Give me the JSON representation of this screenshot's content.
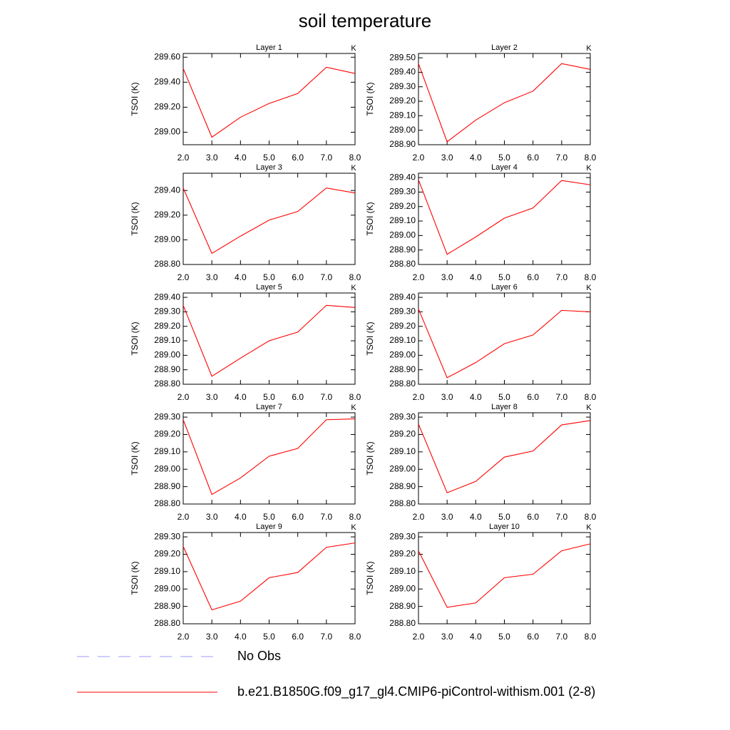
{
  "title": "soil temperature",
  "legend": [
    {
      "name": "No Obs",
      "color": "#9999ff",
      "dashed": true
    },
    {
      "name": "b.e21.B1850G.f09_g17_gl4.CMIP6-piControl-withism.001 (2-8)",
      "color": "#ff0000",
      "dashed": false
    }
  ],
  "chart_data": [
    {
      "type": "line",
      "title": "Layer 1",
      "ylabel": "TSOI  (K)",
      "units": "K",
      "color": "#ff0000",
      "x": [
        2,
        3,
        4,
        5,
        6,
        7,
        8
      ],
      "values": [
        289.51,
        288.96,
        289.12,
        289.23,
        289.31,
        289.52,
        289.47
      ],
      "xlim": [
        2,
        8
      ],
      "xticks": [
        {
          "value": 2,
          "label": "2.0"
        },
        {
          "value": 3,
          "label": "3.0"
        },
        {
          "value": 4,
          "label": "4.0"
        },
        {
          "value": 5,
          "label": "5.0"
        },
        {
          "value": 6,
          "label": "6.0"
        },
        {
          "value": 7,
          "label": "7.0"
        },
        {
          "value": 8,
          "label": "8.0"
        }
      ],
      "ylim": [
        288.9,
        289.63
      ],
      "yticks": [
        {
          "value": 289.0,
          "label": "289.00"
        },
        {
          "value": 289.2,
          "label": "289.20"
        },
        {
          "value": 289.4,
          "label": "289.40"
        },
        {
          "value": 289.6,
          "label": "289.60"
        }
      ]
    },
    {
      "type": "line",
      "title": "Layer 2",
      "ylabel": "TSOI  (K)",
      "units": "K",
      "color": "#ff0000",
      "x": [
        2,
        3,
        4,
        5,
        6,
        7,
        8
      ],
      "values": [
        289.46,
        288.92,
        289.07,
        289.19,
        289.27,
        289.46,
        289.42
      ],
      "xlim": [
        2,
        8
      ],
      "xticks": [
        {
          "value": 2,
          "label": "2.0"
        },
        {
          "value": 3,
          "label": "3.0"
        },
        {
          "value": 4,
          "label": "4.0"
        },
        {
          "value": 5,
          "label": "5.0"
        },
        {
          "value": 6,
          "label": "6.0"
        },
        {
          "value": 7,
          "label": "7.0"
        },
        {
          "value": 8,
          "label": "8.0"
        }
      ],
      "ylim": [
        288.9,
        289.53
      ],
      "yticks": [
        {
          "value": 288.9,
          "label": "288.90"
        },
        {
          "value": 289.0,
          "label": "289.00"
        },
        {
          "value": 289.1,
          "label": "289.10"
        },
        {
          "value": 289.2,
          "label": "289.20"
        },
        {
          "value": 289.3,
          "label": "289.30"
        },
        {
          "value": 289.4,
          "label": "289.40"
        },
        {
          "value": 289.5,
          "label": "289.50"
        }
      ]
    },
    {
      "type": "line",
      "title": "Layer 3",
      "ylabel": "TSOI  (K)",
      "units": "K",
      "color": "#ff0000",
      "x": [
        2,
        3,
        4,
        5,
        6,
        7,
        8
      ],
      "values": [
        289.42,
        288.89,
        289.03,
        289.16,
        289.23,
        289.42,
        289.38
      ],
      "xlim": [
        2,
        8
      ],
      "xticks": [
        {
          "value": 2,
          "label": "2.0"
        },
        {
          "value": 3,
          "label": "3.0"
        },
        {
          "value": 4,
          "label": "4.0"
        },
        {
          "value": 5,
          "label": "5.0"
        },
        {
          "value": 6,
          "label": "6.0"
        },
        {
          "value": 7,
          "label": "7.0"
        },
        {
          "value": 8,
          "label": "8.0"
        }
      ],
      "ylim": [
        288.8,
        289.54
      ],
      "yticks": [
        {
          "value": 288.8,
          "label": "288.80"
        },
        {
          "value": 289.0,
          "label": "289.00"
        },
        {
          "value": 289.2,
          "label": "289.20"
        },
        {
          "value": 289.4,
          "label": "289.40"
        }
      ]
    },
    {
      "type": "line",
      "title": "Layer 4",
      "ylabel": "TSOI  (K)",
      "units": "K",
      "color": "#ff0000",
      "x": [
        2,
        3,
        4,
        5,
        6,
        7,
        8
      ],
      "values": [
        289.385,
        288.87,
        288.99,
        289.12,
        289.19,
        289.38,
        289.35
      ],
      "xlim": [
        2,
        8
      ],
      "xticks": [
        {
          "value": 2,
          "label": "2.0"
        },
        {
          "value": 3,
          "label": "3.0"
        },
        {
          "value": 4,
          "label": "4.0"
        },
        {
          "value": 5,
          "label": "5.0"
        },
        {
          "value": 6,
          "label": "6.0"
        },
        {
          "value": 7,
          "label": "7.0"
        },
        {
          "value": 8,
          "label": "8.0"
        }
      ],
      "ylim": [
        288.8,
        289.43
      ],
      "yticks": [
        {
          "value": 288.8,
          "label": "288.80"
        },
        {
          "value": 288.9,
          "label": "288.90"
        },
        {
          "value": 289.0,
          "label": "289.00"
        },
        {
          "value": 289.1,
          "label": "289.10"
        },
        {
          "value": 289.2,
          "label": "289.20"
        },
        {
          "value": 289.3,
          "label": "289.30"
        },
        {
          "value": 289.4,
          "label": "289.40"
        }
      ]
    },
    {
      "type": "line",
      "title": "Layer 5",
      "ylabel": "TSOI  (K)",
      "units": "K",
      "color": "#ff0000",
      "x": [
        2,
        3,
        4,
        5,
        6,
        7,
        8
      ],
      "values": [
        289.345,
        288.855,
        288.98,
        289.1,
        289.16,
        289.345,
        289.33
      ],
      "xlim": [
        2,
        8
      ],
      "xticks": [
        {
          "value": 2,
          "label": "2.0"
        },
        {
          "value": 3,
          "label": "3.0"
        },
        {
          "value": 4,
          "label": "4.0"
        },
        {
          "value": 5,
          "label": "5.0"
        },
        {
          "value": 6,
          "label": "6.0"
        },
        {
          "value": 7,
          "label": "7.0"
        },
        {
          "value": 8,
          "label": "8.0"
        }
      ],
      "ylim": [
        288.8,
        289.43
      ],
      "yticks": [
        {
          "value": 288.8,
          "label": "288.80"
        },
        {
          "value": 288.9,
          "label": "288.90"
        },
        {
          "value": 289.0,
          "label": "289.00"
        },
        {
          "value": 289.1,
          "label": "289.10"
        },
        {
          "value": 289.2,
          "label": "289.20"
        },
        {
          "value": 289.3,
          "label": "289.30"
        },
        {
          "value": 289.4,
          "label": "289.40"
        }
      ]
    },
    {
      "type": "line",
      "title": "Layer 6",
      "ylabel": "TSOI  (K)",
      "units": "K",
      "color": "#ff0000",
      "x": [
        2,
        3,
        4,
        5,
        6,
        7,
        8
      ],
      "values": [
        289.32,
        288.845,
        288.95,
        289.08,
        289.14,
        289.31,
        289.3
      ],
      "xlim": [
        2,
        8
      ],
      "xticks": [
        {
          "value": 2,
          "label": "2.0"
        },
        {
          "value": 3,
          "label": "3.0"
        },
        {
          "value": 4,
          "label": "4.0"
        },
        {
          "value": 5,
          "label": "5.0"
        },
        {
          "value": 6,
          "label": "6.0"
        },
        {
          "value": 7,
          "label": "7.0"
        },
        {
          "value": 8,
          "label": "8.0"
        }
      ],
      "ylim": [
        288.8,
        289.43
      ],
      "yticks": [
        {
          "value": 288.8,
          "label": "288.80"
        },
        {
          "value": 288.9,
          "label": "288.90"
        },
        {
          "value": 289.0,
          "label": "289.00"
        },
        {
          "value": 289.1,
          "label": "289.10"
        },
        {
          "value": 289.2,
          "label": "289.20"
        },
        {
          "value": 289.3,
          "label": "289.30"
        },
        {
          "value": 289.4,
          "label": "289.40"
        }
      ]
    },
    {
      "type": "line",
      "title": "Layer 7",
      "ylabel": "TSOI  (K)",
      "units": "K",
      "color": "#ff0000",
      "x": [
        2,
        3,
        4,
        5,
        6,
        7,
        8
      ],
      "values": [
        289.285,
        288.855,
        288.95,
        289.075,
        289.12,
        289.285,
        289.29
      ],
      "xlim": [
        2,
        8
      ],
      "xticks": [
        {
          "value": 2,
          "label": "2.0"
        },
        {
          "value": 3,
          "label": "3.0"
        },
        {
          "value": 4,
          "label": "4.0"
        },
        {
          "value": 5,
          "label": "5.0"
        },
        {
          "value": 6,
          "label": "6.0"
        },
        {
          "value": 7,
          "label": "7.0"
        },
        {
          "value": 8,
          "label": "8.0"
        }
      ],
      "ylim": [
        288.8,
        289.325
      ],
      "yticks": [
        {
          "value": 288.8,
          "label": "288.80"
        },
        {
          "value": 288.9,
          "label": "288.90"
        },
        {
          "value": 289.0,
          "label": "289.00"
        },
        {
          "value": 289.1,
          "label": "289.10"
        },
        {
          "value": 289.2,
          "label": "289.20"
        },
        {
          "value": 289.3,
          "label": "289.30"
        }
      ]
    },
    {
      "type": "line",
      "title": "Layer 8",
      "ylabel": "TSOI  (K)",
      "units": "K",
      "color": "#ff0000",
      "x": [
        2,
        3,
        4,
        5,
        6,
        7,
        8
      ],
      "values": [
        289.26,
        288.865,
        288.93,
        289.07,
        289.105,
        289.255,
        289.28
      ],
      "xlim": [
        2,
        8
      ],
      "xticks": [
        {
          "value": 2,
          "label": "2.0"
        },
        {
          "value": 3,
          "label": "3.0"
        },
        {
          "value": 4,
          "label": "4.0"
        },
        {
          "value": 5,
          "label": "5.0"
        },
        {
          "value": 6,
          "label": "6.0"
        },
        {
          "value": 7,
          "label": "7.0"
        },
        {
          "value": 8,
          "label": "8.0"
        }
      ],
      "ylim": [
        288.8,
        289.325
      ],
      "yticks": [
        {
          "value": 288.8,
          "label": "288.80"
        },
        {
          "value": 288.9,
          "label": "288.90"
        },
        {
          "value": 289.0,
          "label": "289.00"
        },
        {
          "value": 289.1,
          "label": "289.10"
        },
        {
          "value": 289.2,
          "label": "289.20"
        },
        {
          "value": 289.3,
          "label": "289.30"
        }
      ]
    },
    {
      "type": "line",
      "title": "Layer 9",
      "ylabel": "TSOI  (K)",
      "units": "K",
      "color": "#ff0000",
      "x": [
        2,
        3,
        4,
        5,
        6,
        7,
        8
      ],
      "values": [
        289.245,
        288.88,
        288.93,
        289.065,
        289.095,
        289.24,
        289.265
      ],
      "xlim": [
        2,
        8
      ],
      "xticks": [
        {
          "value": 2,
          "label": "2.0"
        },
        {
          "value": 3,
          "label": "3.0"
        },
        {
          "value": 4,
          "label": "4.0"
        },
        {
          "value": 5,
          "label": "5.0"
        },
        {
          "value": 6,
          "label": "6.0"
        },
        {
          "value": 7,
          "label": "7.0"
        },
        {
          "value": 8,
          "label": "8.0"
        }
      ],
      "ylim": [
        288.8,
        289.325
      ],
      "yticks": [
        {
          "value": 288.8,
          "label": "288.80"
        },
        {
          "value": 288.9,
          "label": "288.90"
        },
        {
          "value": 289.0,
          "label": "289.00"
        },
        {
          "value": 289.1,
          "label": "289.10"
        },
        {
          "value": 289.2,
          "label": "289.20"
        },
        {
          "value": 289.3,
          "label": "289.30"
        }
      ]
    },
    {
      "type": "line",
      "title": "Layer 10",
      "ylabel": "TSOI  (K)",
      "units": "K",
      "color": "#ff0000",
      "x": [
        2,
        3,
        4,
        5,
        6,
        7,
        8
      ],
      "values": [
        289.22,
        288.895,
        288.92,
        289.065,
        289.085,
        289.22,
        289.26
      ],
      "xlim": [
        2,
        8
      ],
      "xticks": [
        {
          "value": 2,
          "label": "2.0"
        },
        {
          "value": 3,
          "label": "3.0"
        },
        {
          "value": 4,
          "label": "4.0"
        },
        {
          "value": 5,
          "label": "5.0"
        },
        {
          "value": 6,
          "label": "6.0"
        },
        {
          "value": 7,
          "label": "7.0"
        },
        {
          "value": 8,
          "label": "8.0"
        }
      ],
      "ylim": [
        288.8,
        289.325
      ],
      "yticks": [
        {
          "value": 288.8,
          "label": "288.80"
        },
        {
          "value": 288.9,
          "label": "288.90"
        },
        {
          "value": 289.0,
          "label": "289.00"
        },
        {
          "value": 289.1,
          "label": "289.10"
        },
        {
          "value": 289.2,
          "label": "289.20"
        },
        {
          "value": 289.3,
          "label": "289.30"
        }
      ]
    }
  ]
}
